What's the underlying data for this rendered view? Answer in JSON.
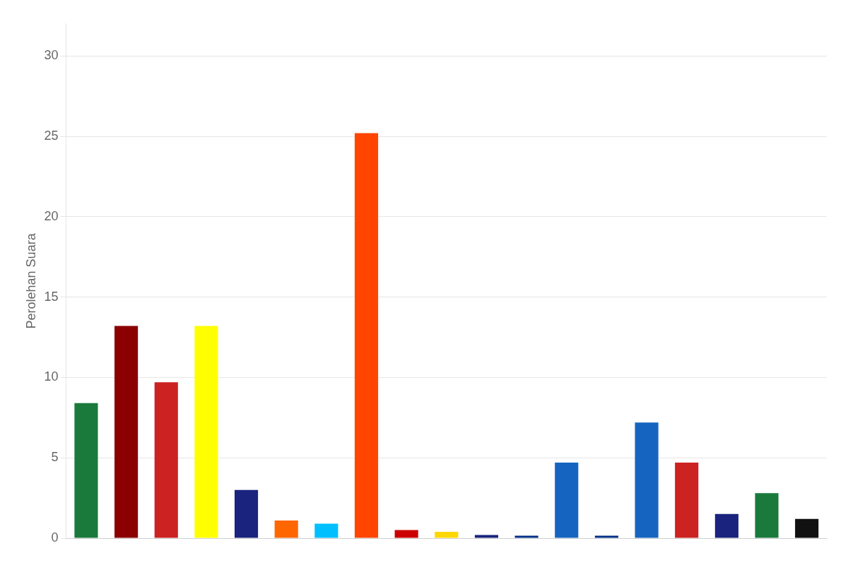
{
  "chart_data": {
    "type": "bar",
    "ylabel": "Perolehan Suara",
    "categories": [
      null,
      null,
      null,
      null,
      null,
      null,
      null,
      null,
      null,
      null,
      null,
      null,
      null,
      null,
      null,
      null,
      null,
      null,
      null
    ],
    "values": [
      8.4,
      13.2,
      9.7,
      13.2,
      3.0,
      1.1,
      0.9,
      25.2,
      0.5,
      0.4,
      0.2,
      0.15,
      4.7,
      0.15,
      7.2,
      4.7,
      1.5,
      2.8,
      1.2
    ],
    "colors": [
      "#1a7a3c",
      "#8b0000",
      "#cc2222",
      "#ffff00",
      "#1a237e",
      "#ff6600",
      "#00bfff",
      "#ff4500",
      "#cc0000",
      "#ffd700",
      "#1a237e",
      "#003087",
      "#1565c0",
      "#003087",
      "#1565c0",
      "#cc2222",
      "#1a237e",
      "#1a7a3c",
      "#111111"
    ],
    "ylim": [
      0,
      32
    ],
    "yticks": [
      0,
      5,
      10,
      15,
      20,
      25,
      30
    ],
    "grid": true,
    "tick_labels": "y"
  }
}
